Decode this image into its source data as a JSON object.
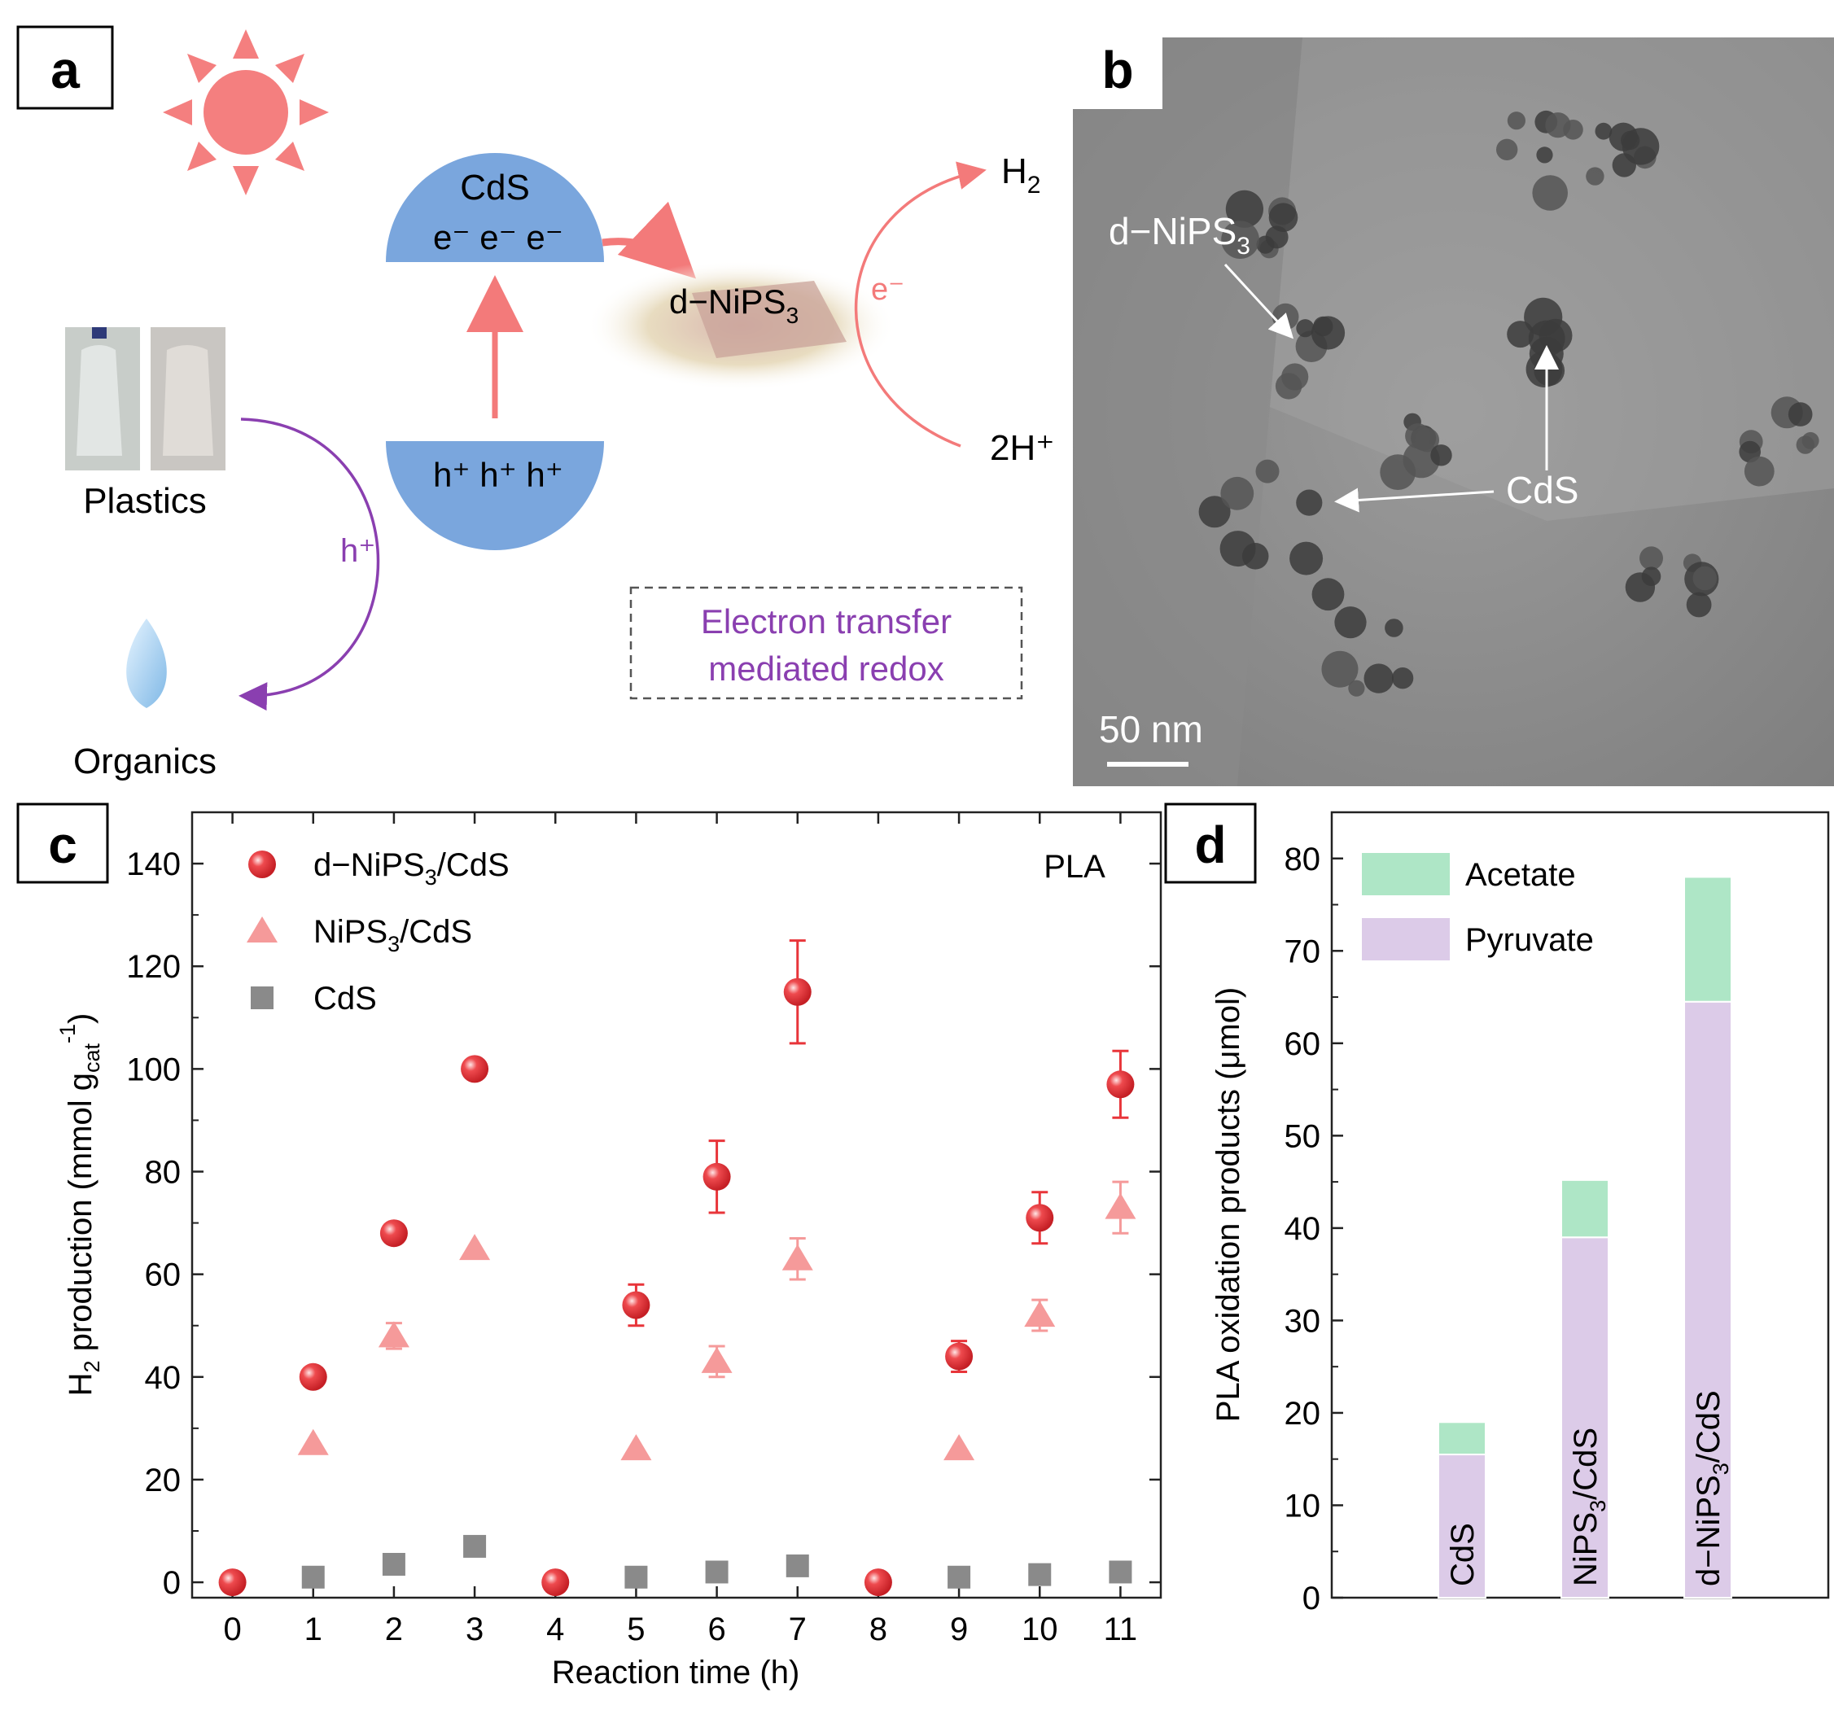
{
  "panels": {
    "a": {
      "letter": "a",
      "cds_top_label": "CdS",
      "electrons_label": "e⁻ e⁻ e⁻",
      "holes_label": "h⁺ h⁺ h⁺",
      "cocatalyst_label": "d−NiPS",
      "cocatalyst_sub": "3",
      "electron_arrow_label": "e⁻",
      "h2_label": "H",
      "h2_sub": "2",
      "proton_label": "2H⁺",
      "plastics_label": "Plastics",
      "hole_arrow_label": "h⁺",
      "organics_label": "Organics",
      "box_line1": "Electron transfer",
      "box_line2": "mediated redox",
      "colors": {
        "sun": "#f47f7f",
        "band": "#7aa6dd",
        "red_arrow": "#f37a7a",
        "purple": "#8a3fb0"
      },
      "icons": [
        "sun-icon",
        "plastic-bottle-icon",
        "organics-droplet-icon"
      ]
    },
    "b": {
      "letter": "b",
      "label_nips": "d−NiPS",
      "label_nips_sub": "3",
      "label_cds": "CdS",
      "scale_bar": "50 nm"
    },
    "c": {
      "letter": "c"
    },
    "d": {
      "letter": "d"
    }
  },
  "chart_data": [
    {
      "panel": "c",
      "type": "scatter",
      "annotation": "PLA",
      "xlabel": "Reaction time (h)",
      "ylabel": {
        "prefix": "H",
        "prefix_sub": "2",
        "middle": " production (mmol g",
        "cat_sub": "cat",
        "sup": "-1",
        "suffix": ")"
      },
      "xlim": [
        -0.5,
        11.5
      ],
      "ylim": [
        -3,
        150
      ],
      "xticks": [
        0,
        1,
        2,
        3,
        4,
        5,
        6,
        7,
        8,
        9,
        10,
        11
      ],
      "yticks": [
        0,
        20,
        40,
        60,
        80,
        100,
        120,
        140
      ],
      "legend_position": "top-left",
      "series": [
        {
          "name": "d−NiPS₃/CdS",
          "name_parts": [
            "d−NiPS",
            "3",
            "/CdS"
          ],
          "marker": "circle",
          "color": "#e8353a",
          "x": [
            0,
            1,
            2,
            3,
            4,
            5,
            6,
            7,
            8,
            9,
            10,
            11
          ],
          "y": [
            0,
            40,
            68,
            100,
            0,
            54,
            79,
            115,
            0,
            44,
            71,
            97
          ],
          "err": [
            0,
            0,
            0,
            0,
            0,
            4,
            7,
            10,
            0,
            3,
            5,
            6.5
          ]
        },
        {
          "name": "NiPS₃/CdS",
          "name_parts": [
            "NiPS",
            "3",
            "/CdS"
          ],
          "marker": "triangle",
          "color": "#f59a9a",
          "x": [
            1,
            2,
            3,
            5,
            6,
            7,
            9,
            10,
            11
          ],
          "y": [
            27,
            48,
            65,
            26,
            43,
            63,
            26,
            52,
            73
          ],
          "err": [
            0,
            2.5,
            0,
            0,
            3,
            4,
            0,
            3,
            5
          ]
        },
        {
          "name": "CdS",
          "name_parts": [
            "CdS",
            "",
            ""
          ],
          "marker": "square",
          "color": "#8a8a8a",
          "x": [
            1,
            2,
            3,
            5,
            6,
            7,
            9,
            10,
            11
          ],
          "y": [
            1,
            3.5,
            7,
            1,
            2,
            3.2,
            1,
            1.5,
            2
          ],
          "err": [
            0,
            0,
            0,
            0,
            0,
            0,
            0,
            0,
            0
          ]
        }
      ]
    },
    {
      "panel": "d",
      "type": "bar",
      "stacked": true,
      "ylabel": "PLA oxidation products (μmol)",
      "ylim": [
        0,
        85
      ],
      "yticks": [
        0,
        10,
        20,
        30,
        40,
        50,
        60,
        70,
        80
      ],
      "categories": [
        "CdS",
        "NiPS₃/CdS",
        "d−NiPS₃/CdS"
      ],
      "category_parts": [
        [
          "CdS",
          "",
          ""
        ],
        [
          "NiPS",
          "3",
          "/CdS"
        ],
        [
          "d−NiPS",
          "3",
          "/CdS"
        ]
      ],
      "legend_position": "top-left",
      "series": [
        {
          "name": "Pyruvate",
          "color": "#dccbe8",
          "values": [
            15.5,
            39,
            64.5
          ]
        },
        {
          "name": "Acetate",
          "color": "#aee6c6",
          "values": [
            3.5,
            6.2,
            13.5
          ]
        }
      ]
    }
  ]
}
